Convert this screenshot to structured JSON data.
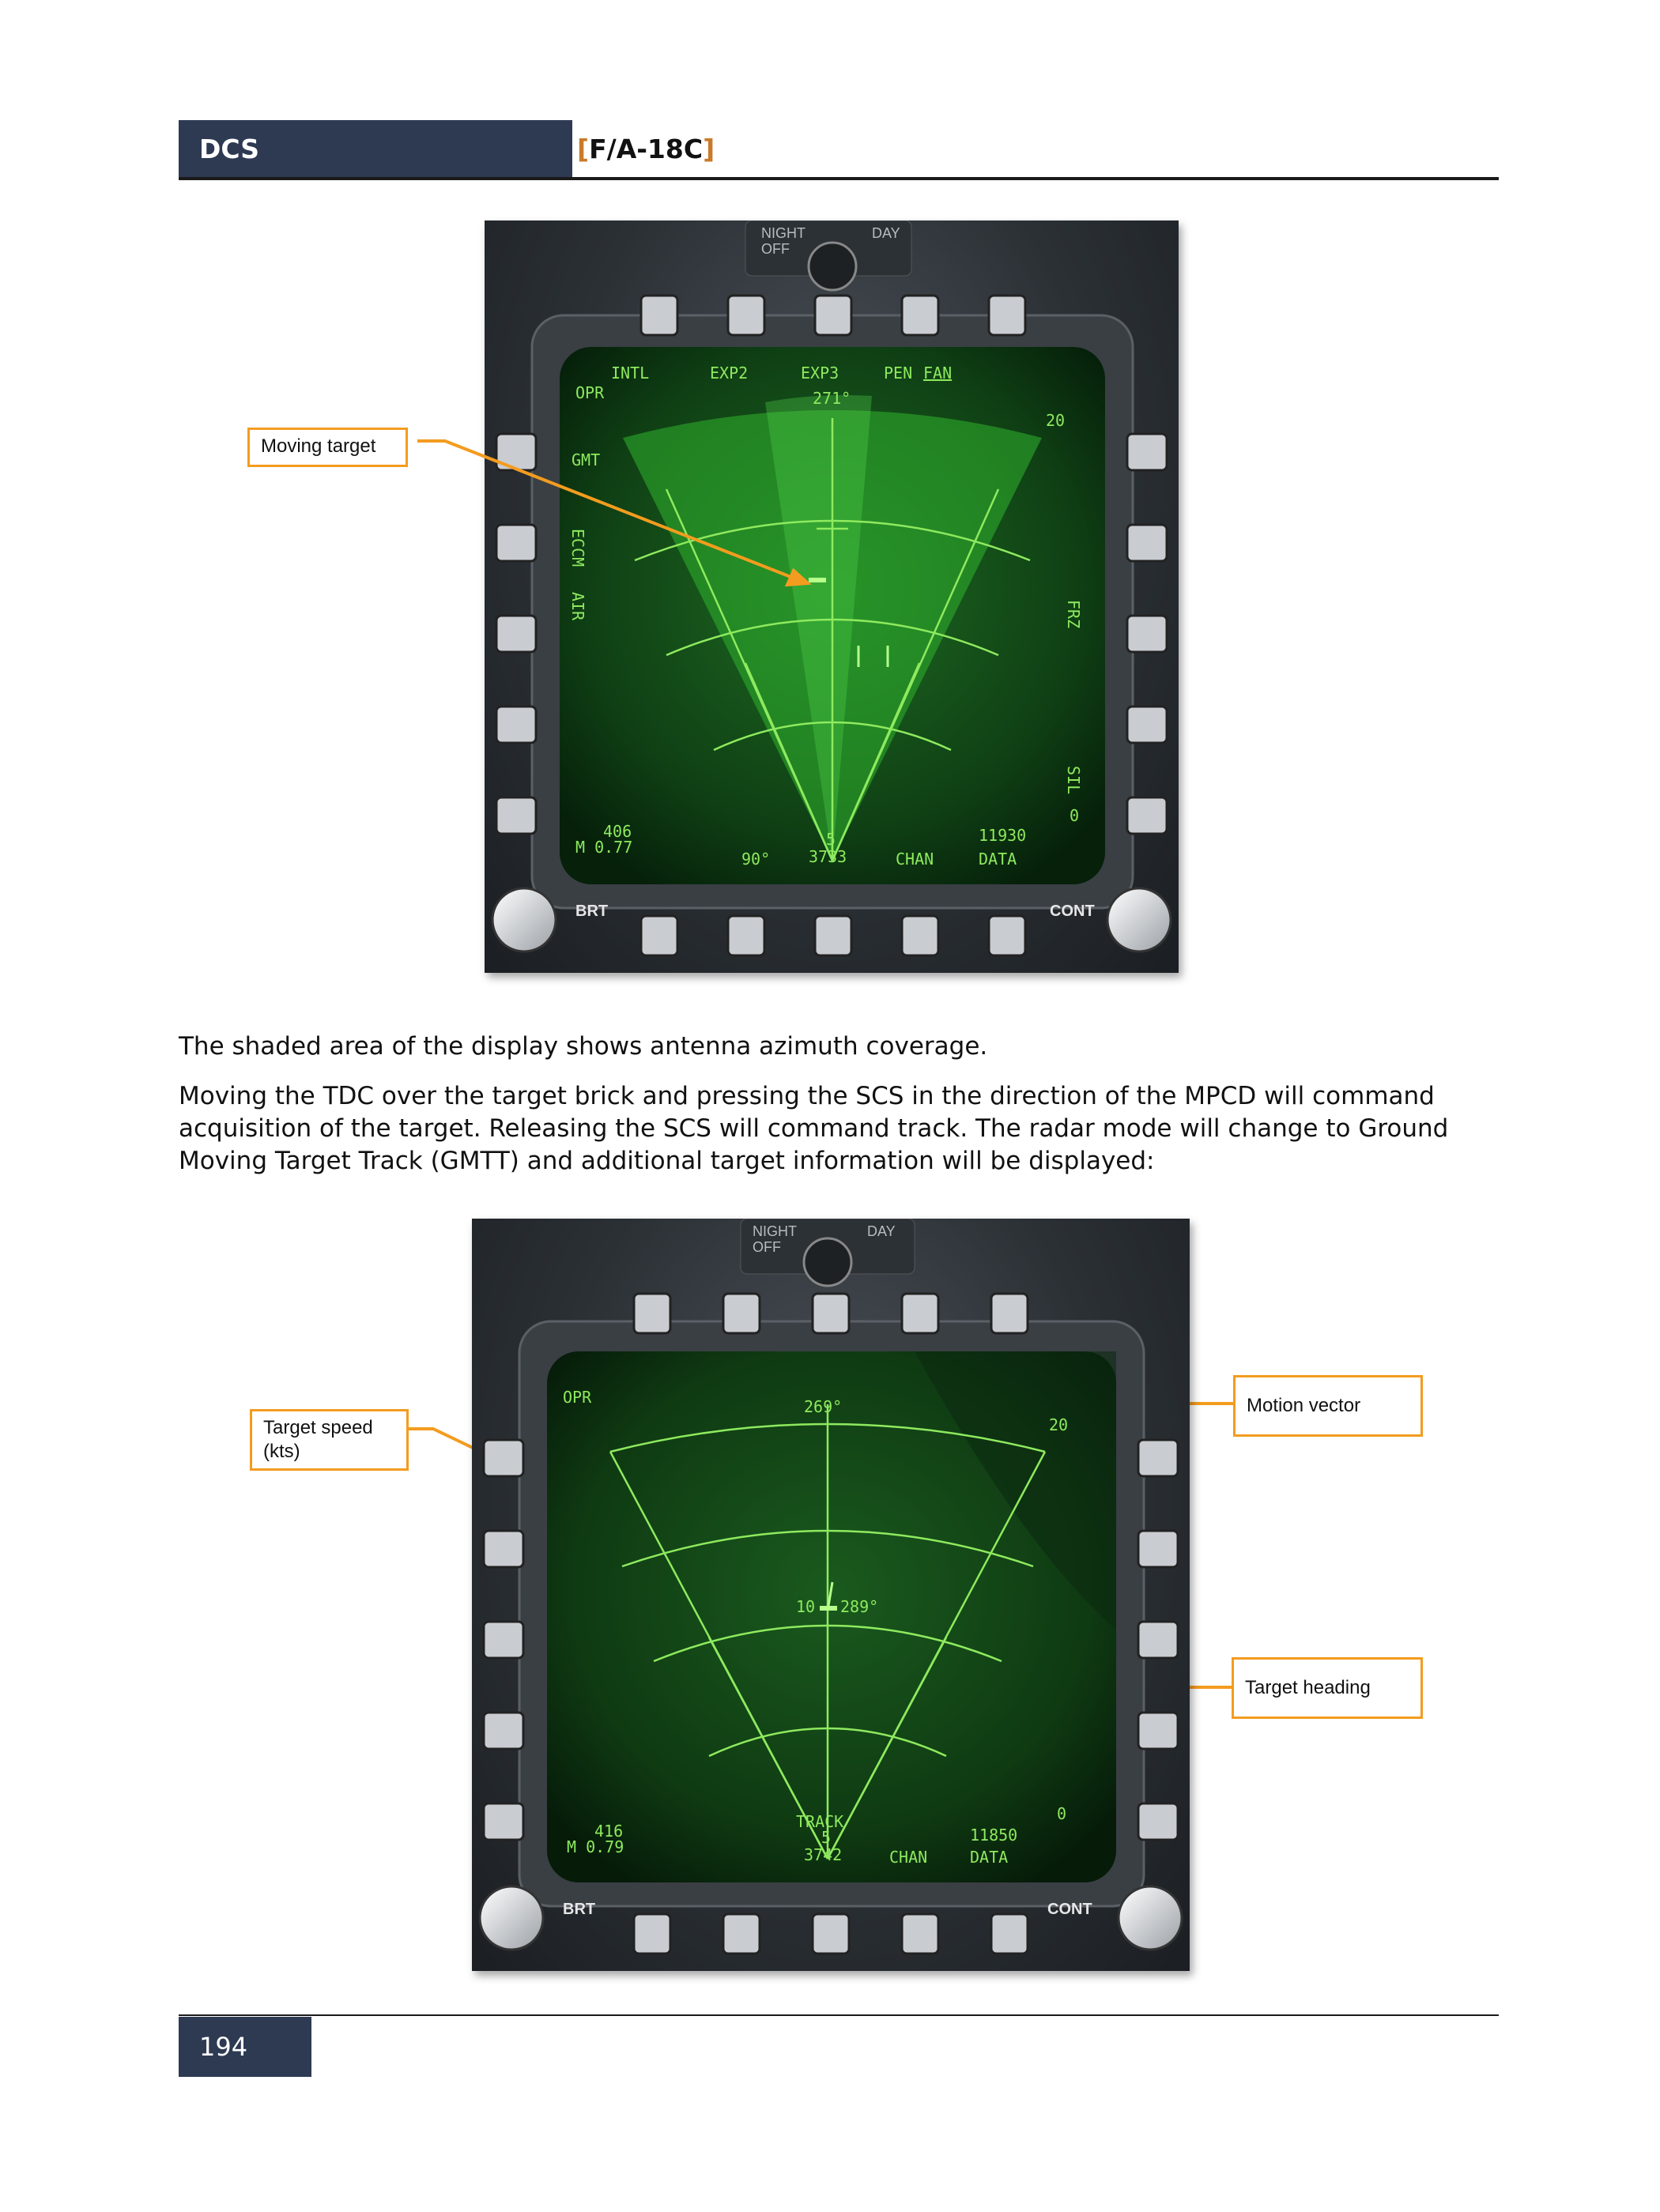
{
  "header": {
    "left": "DCS",
    "right_open": "[",
    "right_title": "F/A-18C",
    "right_close": "]"
  },
  "figure1": {
    "callouts": {
      "moving_target": "Moving target"
    },
    "mpcd": {
      "top_labels": [
        "INTL",
        "EXP2",
        "EXP3",
        "PEN",
        "FAN"
      ],
      "opr": "OPR",
      "gmt": "GMT",
      "eccm": "ECCM",
      "air": "AIR",
      "frz": "FRZ",
      "sil": "SIL",
      "bearing": "271°",
      "range_scale": "20",
      "speed": "406",
      "mach": "M 0.77",
      "azimuth": "90°",
      "bar": "5",
      "elev": "3733",
      "chan": "CHAN",
      "alt": "11930",
      "data": "DATA",
      "zero": "0",
      "knob_night": "NIGHT",
      "knob_day": "DAY",
      "knob_off": "OFF",
      "brt": "BRT",
      "cont": "CONT"
    }
  },
  "body": {
    "p1": "The shaded area of the display shows antenna azimuth coverage.",
    "p2": "Moving the TDC over the target brick and pressing the SCS in the direction of the MPCD will command acquisition of the target. Releasing the SCS will command track. The radar mode will change to Ground Moving Target Track (GMTT) and additional target information will be displayed:"
  },
  "figure2": {
    "callouts": {
      "target_speed": "Target speed (kts)",
      "motion_vector": "Motion vector",
      "target_heading": "Target heading"
    },
    "mpcd": {
      "opr": "OPR",
      "bearing": "269°",
      "range_scale": "20",
      "tgt_speed": "10",
      "tgt_heading": "289°",
      "speed": "416",
      "mach": "M 0.79",
      "track": "TRACK",
      "bar": "5",
      "elev": "3742",
      "chan": "CHAN",
      "alt": "11850",
      "data": "DATA",
      "zero": "0",
      "knob_night": "NIGHT",
      "knob_day": "DAY",
      "knob_off": "OFF",
      "brt": "BRT",
      "cont": "CONT"
    }
  },
  "footer": {
    "page_number": "194"
  }
}
